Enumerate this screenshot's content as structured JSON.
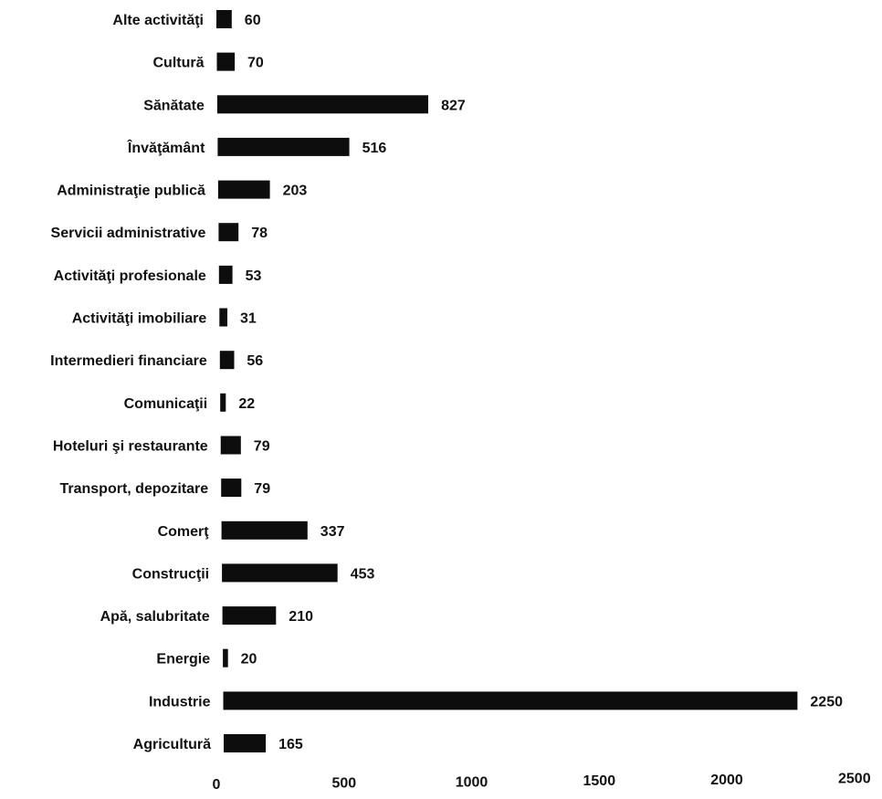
{
  "chart_data": {
    "type": "bar",
    "orientation": "horizontal",
    "categories": [
      "Alte activităţi",
      "Cultură",
      "Sănătate",
      "Învăţământ",
      "Administraţie publică",
      "Servicii administrative",
      "Activităţi profesionale",
      "Activităţi imobiliare",
      "Intermedieri financiare",
      "Comunicaţii",
      "Hoteluri şi restaurante",
      "Transport, depozitare",
      "Comerţ",
      "Construcţii",
      "Apă, salubritate",
      "Energie",
      "Industrie",
      "Agricultură"
    ],
    "values": [
      60,
      70,
      827,
      516,
      203,
      78,
      53,
      31,
      56,
      22,
      79,
      79,
      337,
      453,
      210,
      20,
      2250,
      165
    ],
    "xlim": [
      0,
      2500
    ],
    "xticks": [
      0,
      500,
      1000,
      1500,
      2000,
      2500
    ],
    "grid": false,
    "bar_color": "#0d0d0d",
    "title": "",
    "xlabel": "",
    "ylabel": ""
  }
}
